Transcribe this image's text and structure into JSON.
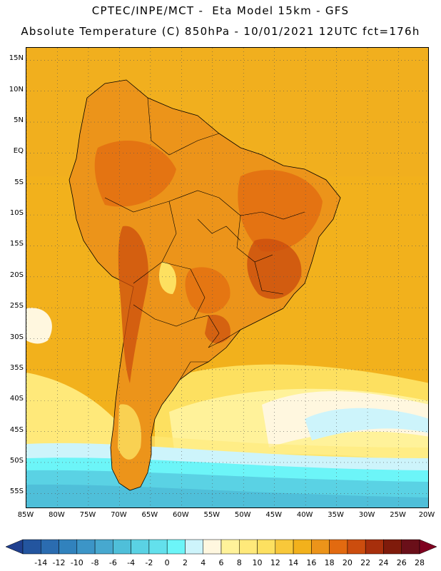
{
  "header": {
    "line1": "CPTEC/INPE/MCT -  Eta Model 15km - GFS",
    "line2": "Absolute Temperature (C) 850hPa - 10/01/2021 12UTC fct=176h"
  },
  "map": {
    "lat_labels": [
      "15N",
      "10N",
      "5N",
      "EQ",
      "5S",
      "10S",
      "15S",
      "20S",
      "25S",
      "30S",
      "35S",
      "40S",
      "45S",
      "50S",
      "55S"
    ],
    "lat_values": [
      15,
      10,
      5,
      0,
      -5,
      -10,
      -15,
      -20,
      -25,
      -30,
      -35,
      -40,
      -45,
      -50,
      -55
    ],
    "lon_labels": [
      "85W",
      "80W",
      "75W",
      "70W",
      "65W",
      "60W",
      "55W",
      "50W",
      "45W",
      "40W",
      "35W",
      "30W",
      "25W",
      "20W"
    ],
    "lon_values": [
      -85,
      -80,
      -75,
      -70,
      -65,
      -60,
      -55,
      -50,
      -45,
      -40,
      -35,
      -30,
      -25,
      -20
    ],
    "extent": {
      "lon_min": -85,
      "lon_max": -20,
      "lat_min": -57.5,
      "lat_max": 17
    }
  },
  "legend": {
    "labels": [
      "-14",
      "-12",
      "-10",
      "-8",
      "-6",
      "-4",
      "-2",
      "0",
      "2",
      "4",
      "6",
      "8",
      "10",
      "12",
      "14",
      "16",
      "18",
      "20",
      "22",
      "24",
      "26",
      "28"
    ],
    "colors": [
      "#1f3f8f",
      "#23559f",
      "#2b6cb0",
      "#3182bd",
      "#3c95c7",
      "#47a8cf",
      "#4fbfd9",
      "#5ad2e4",
      "#63e0ec",
      "#6cf5f8",
      "#cdf4fb",
      "#fff7df",
      "#fff29a",
      "#ffe97a",
      "#fde060",
      "#f8c83a",
      "#f2b11c",
      "#ec941a",
      "#e26a10",
      "#cc4d0e",
      "#a72f0c",
      "#7f1b0b",
      "#6a0f19",
      "#800020"
    ]
  }
}
